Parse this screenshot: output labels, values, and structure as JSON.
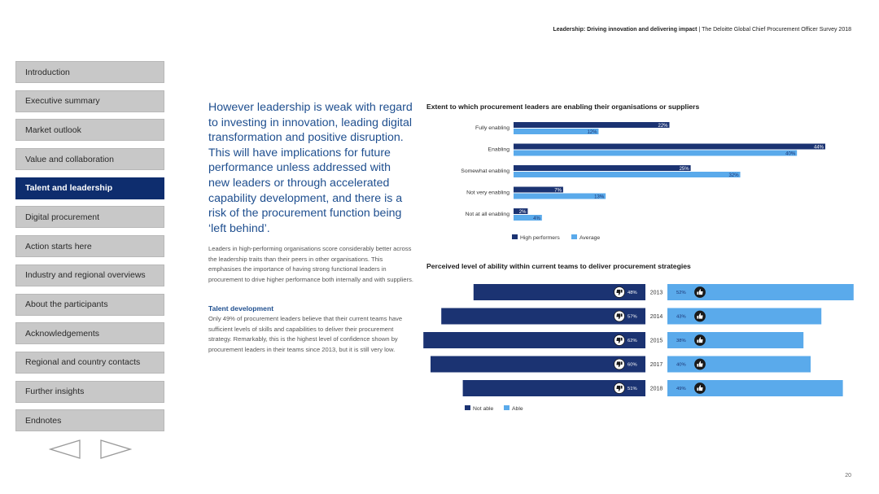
{
  "header": {
    "title_bold": "Leadership: Driving innovation and delivering impact",
    "separator": " | ",
    "subtitle": "The Deloitte Global Chief Procurement Officer Survey 2018"
  },
  "nav": {
    "items": [
      {
        "label": "Introduction"
      },
      {
        "label": "Executive summary"
      },
      {
        "label": "Market outlook"
      },
      {
        "label": "Value and collaboration"
      },
      {
        "label": "Talent and leadership"
      },
      {
        "label": "Digital procurement"
      },
      {
        "label": "Action starts here"
      },
      {
        "label": "Industry and regional overviews"
      },
      {
        "label": "About the participants"
      },
      {
        "label": "Acknowledgements"
      },
      {
        "label": "Regional and country contacts"
      },
      {
        "label": "Further insights"
      },
      {
        "label": "Endnotes"
      }
    ],
    "active_index": 4,
    "prev_icon": "triangle-left-icon",
    "next_icon": "triangle-right-icon"
  },
  "content": {
    "intro": "However leadership is weak with regard to investing in innovation, leading digital transformation and positive disruption. This will have implications for future performance unless addressed with new leaders or through accelerated capability development, and there is a risk of the procurement function being ‘left behind’.",
    "body": "Leaders in high-performing organisations score considerably better across the leadership traits than their peers in other organisations. This emphasises the importance of having strong functional leaders in procurement to drive higher performance both internally and with suppliers.",
    "subhead": "Talent development",
    "body2": "Only 49% of procurement leaders believe that their current teams have sufficient levels of skills and capabilities to deliver their procurement strategy. Remarkably, this is the highest level of confidence shown by procurement leaders in their teams since 2013, but it is still very low."
  },
  "page_number": "20",
  "colors": {
    "dark_blue": "#1b3372",
    "light_blue": "#5aaaeb",
    "nav_active": "#0e2d6e"
  },
  "chart_data": [
    {
      "type": "bar",
      "orientation": "horizontal",
      "title": "Extent to which procurement leaders are enabling their organisations or suppliers",
      "categories": [
        "Fully enabling",
        "Enabling",
        "Somewhat enabling",
        "Not very enabling",
        "Not at all enabling"
      ],
      "series": [
        {
          "name": "High performers",
          "values": [
            22,
            44,
            25,
            7,
            2
          ],
          "labels": [
            "22%",
            "44%",
            "25%",
            "7%",
            "2%"
          ],
          "color": "#1b3372"
        },
        {
          "name": "Average",
          "values": [
            12,
            40,
            32,
            13,
            4
          ],
          "labels": [
            "12%",
            "40%",
            "32%",
            "13%",
            "4%"
          ],
          "color": "#5aaaeb"
        }
      ],
      "xlim": [
        0,
        44
      ],
      "legend": "bottom"
    },
    {
      "type": "bar",
      "orientation": "horizontal-diverging",
      "title": "Perceived level of ability within current teams to deliver procurement strategies",
      "categories": [
        "2013",
        "2014",
        "2015",
        "2017",
        "2018"
      ],
      "series": [
        {
          "name": "Not able",
          "values": [
            48,
            57,
            62,
            60,
            51
          ],
          "labels": [
            "48%",
            "57%",
            "62%",
            "60%",
            "51%"
          ],
          "color": "#1b3372",
          "icon": "thumbs-down-icon"
        },
        {
          "name": "Able",
          "values": [
            52,
            43,
            38,
            40,
            49
          ],
          "labels": [
            "52%",
            "43%",
            "38%",
            "40%",
            "49%"
          ],
          "color": "#5aaaeb",
          "icon": "thumbs-up-icon"
        }
      ],
      "legend": "bottom"
    }
  ]
}
